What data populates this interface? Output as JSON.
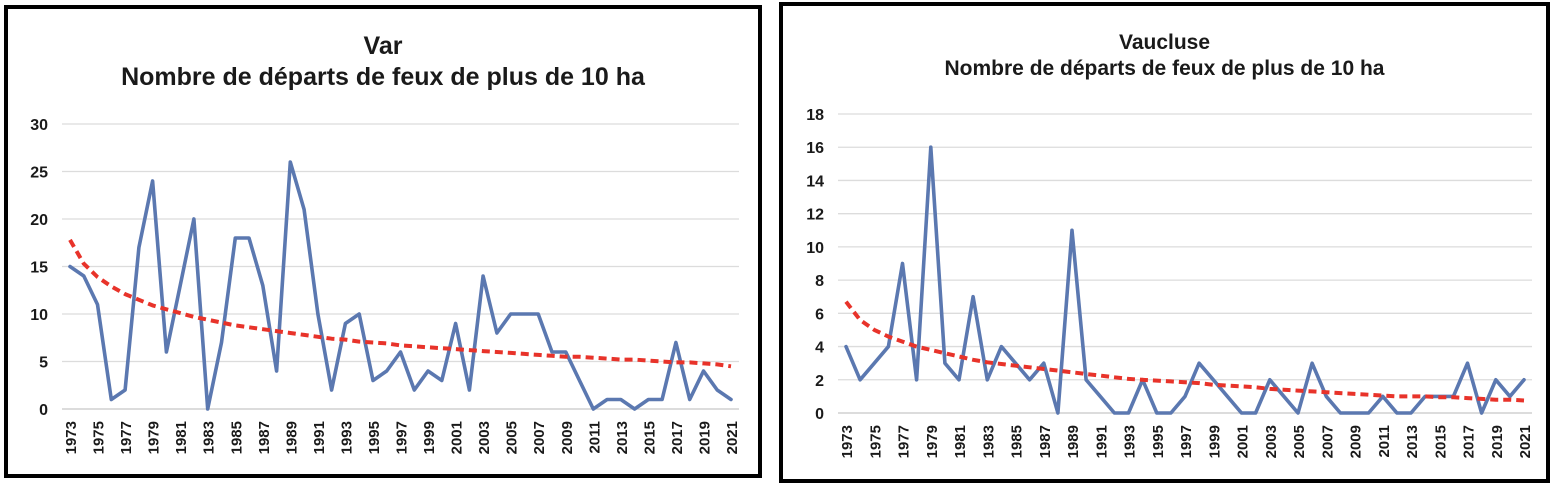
{
  "chart_data": [
    {
      "type": "line",
      "title_line1": "Var",
      "title_line2": "Nombre de départs de feux de plus de 10 ha",
      "xlabel": "",
      "ylabel": "",
      "ylim": [
        0,
        30
      ],
      "yticks": [
        "0",
        "5",
        "10",
        "15",
        "20",
        "25",
        "30"
      ],
      "x": [
        1973,
        1974,
        1975,
        1976,
        1977,
        1978,
        1979,
        1980,
        1981,
        1982,
        1983,
        1984,
        1985,
        1986,
        1987,
        1988,
        1989,
        1990,
        1991,
        1992,
        1993,
        1994,
        1995,
        1996,
        1997,
        1998,
        1999,
        2000,
        2001,
        2002,
        2003,
        2004,
        2005,
        2006,
        2007,
        2008,
        2009,
        2010,
        2011,
        2012,
        2013,
        2014,
        2015,
        2016,
        2017,
        2018,
        2019,
        2020,
        2021
      ],
      "xticks": [
        "1973",
        "1975",
        "1977",
        "1979",
        "1981",
        "1983",
        "1985",
        "1987",
        "1989",
        "1991",
        "1993",
        "1995",
        "1997",
        "1999",
        "2001",
        "2003",
        "2005",
        "2007",
        "2009",
        "2011",
        "2013",
        "2015",
        "2017",
        "2019",
        "2021"
      ],
      "grid": true,
      "series": [
        {
          "kind": "data",
          "color": "#5b78b0",
          "values": [
            15,
            14,
            11,
            1,
            2,
            17,
            24,
            6,
            13,
            20,
            0,
            7,
            18,
            18,
            13,
            4,
            26,
            21,
            10,
            2,
            9,
            10,
            3,
            4,
            6,
            2,
            4,
            3,
            9,
            2,
            14,
            8,
            10,
            10,
            10,
            6,
            6,
            3,
            0,
            1,
            1,
            0,
            1,
            1,
            7,
            1,
            4,
            2,
            1
          ]
        },
        {
          "kind": "trend",
          "style": "dashed",
          "color": "#e8332a",
          "values": [
            17.8,
            15.3,
            13.9,
            12.9,
            12.1,
            11.5,
            10.9,
            10.5,
            10.1,
            9.7,
            9.4,
            9.1,
            8.8,
            8.6,
            8.4,
            8.2,
            8.0,
            7.8,
            7.6,
            7.4,
            7.3,
            7.1,
            7.0,
            6.9,
            6.7,
            6.6,
            6.5,
            6.4,
            6.3,
            6.2,
            6.1,
            6.0,
            5.9,
            5.8,
            5.7,
            5.6,
            5.5,
            5.5,
            5.4,
            5.3,
            5.2,
            5.2,
            5.1,
            5.0,
            4.9,
            4.9,
            4.8,
            4.7,
            4.5
          ]
        }
      ]
    },
    {
      "type": "line",
      "title_line1": "Vaucluse",
      "title_line2": "Nombre de départs de feux de plus de 10 ha",
      "xlabel": "",
      "ylabel": "",
      "ylim": [
        0,
        18
      ],
      "yticks": [
        "0",
        "2",
        "4",
        "6",
        "8",
        "10",
        "12",
        "14",
        "16",
        "18"
      ],
      "x": [
        1973,
        1974,
        1975,
        1976,
        1977,
        1978,
        1979,
        1980,
        1981,
        1982,
        1983,
        1984,
        1985,
        1986,
        1987,
        1988,
        1989,
        1990,
        1991,
        1992,
        1993,
        1994,
        1995,
        1996,
        1997,
        1998,
        1999,
        2000,
        2001,
        2002,
        2003,
        2004,
        2005,
        2006,
        2007,
        2008,
        2009,
        2010,
        2011,
        2012,
        2013,
        2014,
        2015,
        2016,
        2017,
        2018,
        2019,
        2020,
        2021
      ],
      "xticks": [
        "1973",
        "1975",
        "1977",
        "1979",
        "1981",
        "1983",
        "1985",
        "1987",
        "1989",
        "1991",
        "1993",
        "1995",
        "1997",
        "1999",
        "2001",
        "2003",
        "2005",
        "2007",
        "2009",
        "2011",
        "2013",
        "2015",
        "2017",
        "2019",
        "2021"
      ],
      "grid": true,
      "series": [
        {
          "kind": "data",
          "color": "#5b78b0",
          "values": [
            4,
            2,
            3,
            4,
            9,
            2,
            16,
            3,
            2,
            7,
            2,
            4,
            3,
            2,
            3,
            0,
            11,
            2,
            1,
            0,
            0,
            2,
            0,
            0,
            1,
            3,
            2,
            1,
            0,
            0,
            2,
            1,
            0,
            3,
            1,
            0,
            0,
            0,
            1,
            0,
            0,
            1,
            1,
            1,
            3,
            0,
            2,
            1,
            2
          ]
        },
        {
          "kind": "trend",
          "style": "dashed",
          "color": "#e8332a",
          "values": [
            6.7,
            5.6,
            5.0,
            4.6,
            4.3,
            4.0,
            3.8,
            3.6,
            3.4,
            3.2,
            3.05,
            2.95,
            2.85,
            2.75,
            2.65,
            2.55,
            2.45,
            2.35,
            2.25,
            2.15,
            2.05,
            2.0,
            1.95,
            1.9,
            1.85,
            1.8,
            1.7,
            1.65,
            1.6,
            1.55,
            1.45,
            1.4,
            1.35,
            1.3,
            1.25,
            1.2,
            1.15,
            1.1,
            1.05,
            1.0,
            1.0,
            1.0,
            0.95,
            0.95,
            0.9,
            0.85,
            0.8,
            0.8,
            0.75
          ]
        }
      ]
    }
  ]
}
